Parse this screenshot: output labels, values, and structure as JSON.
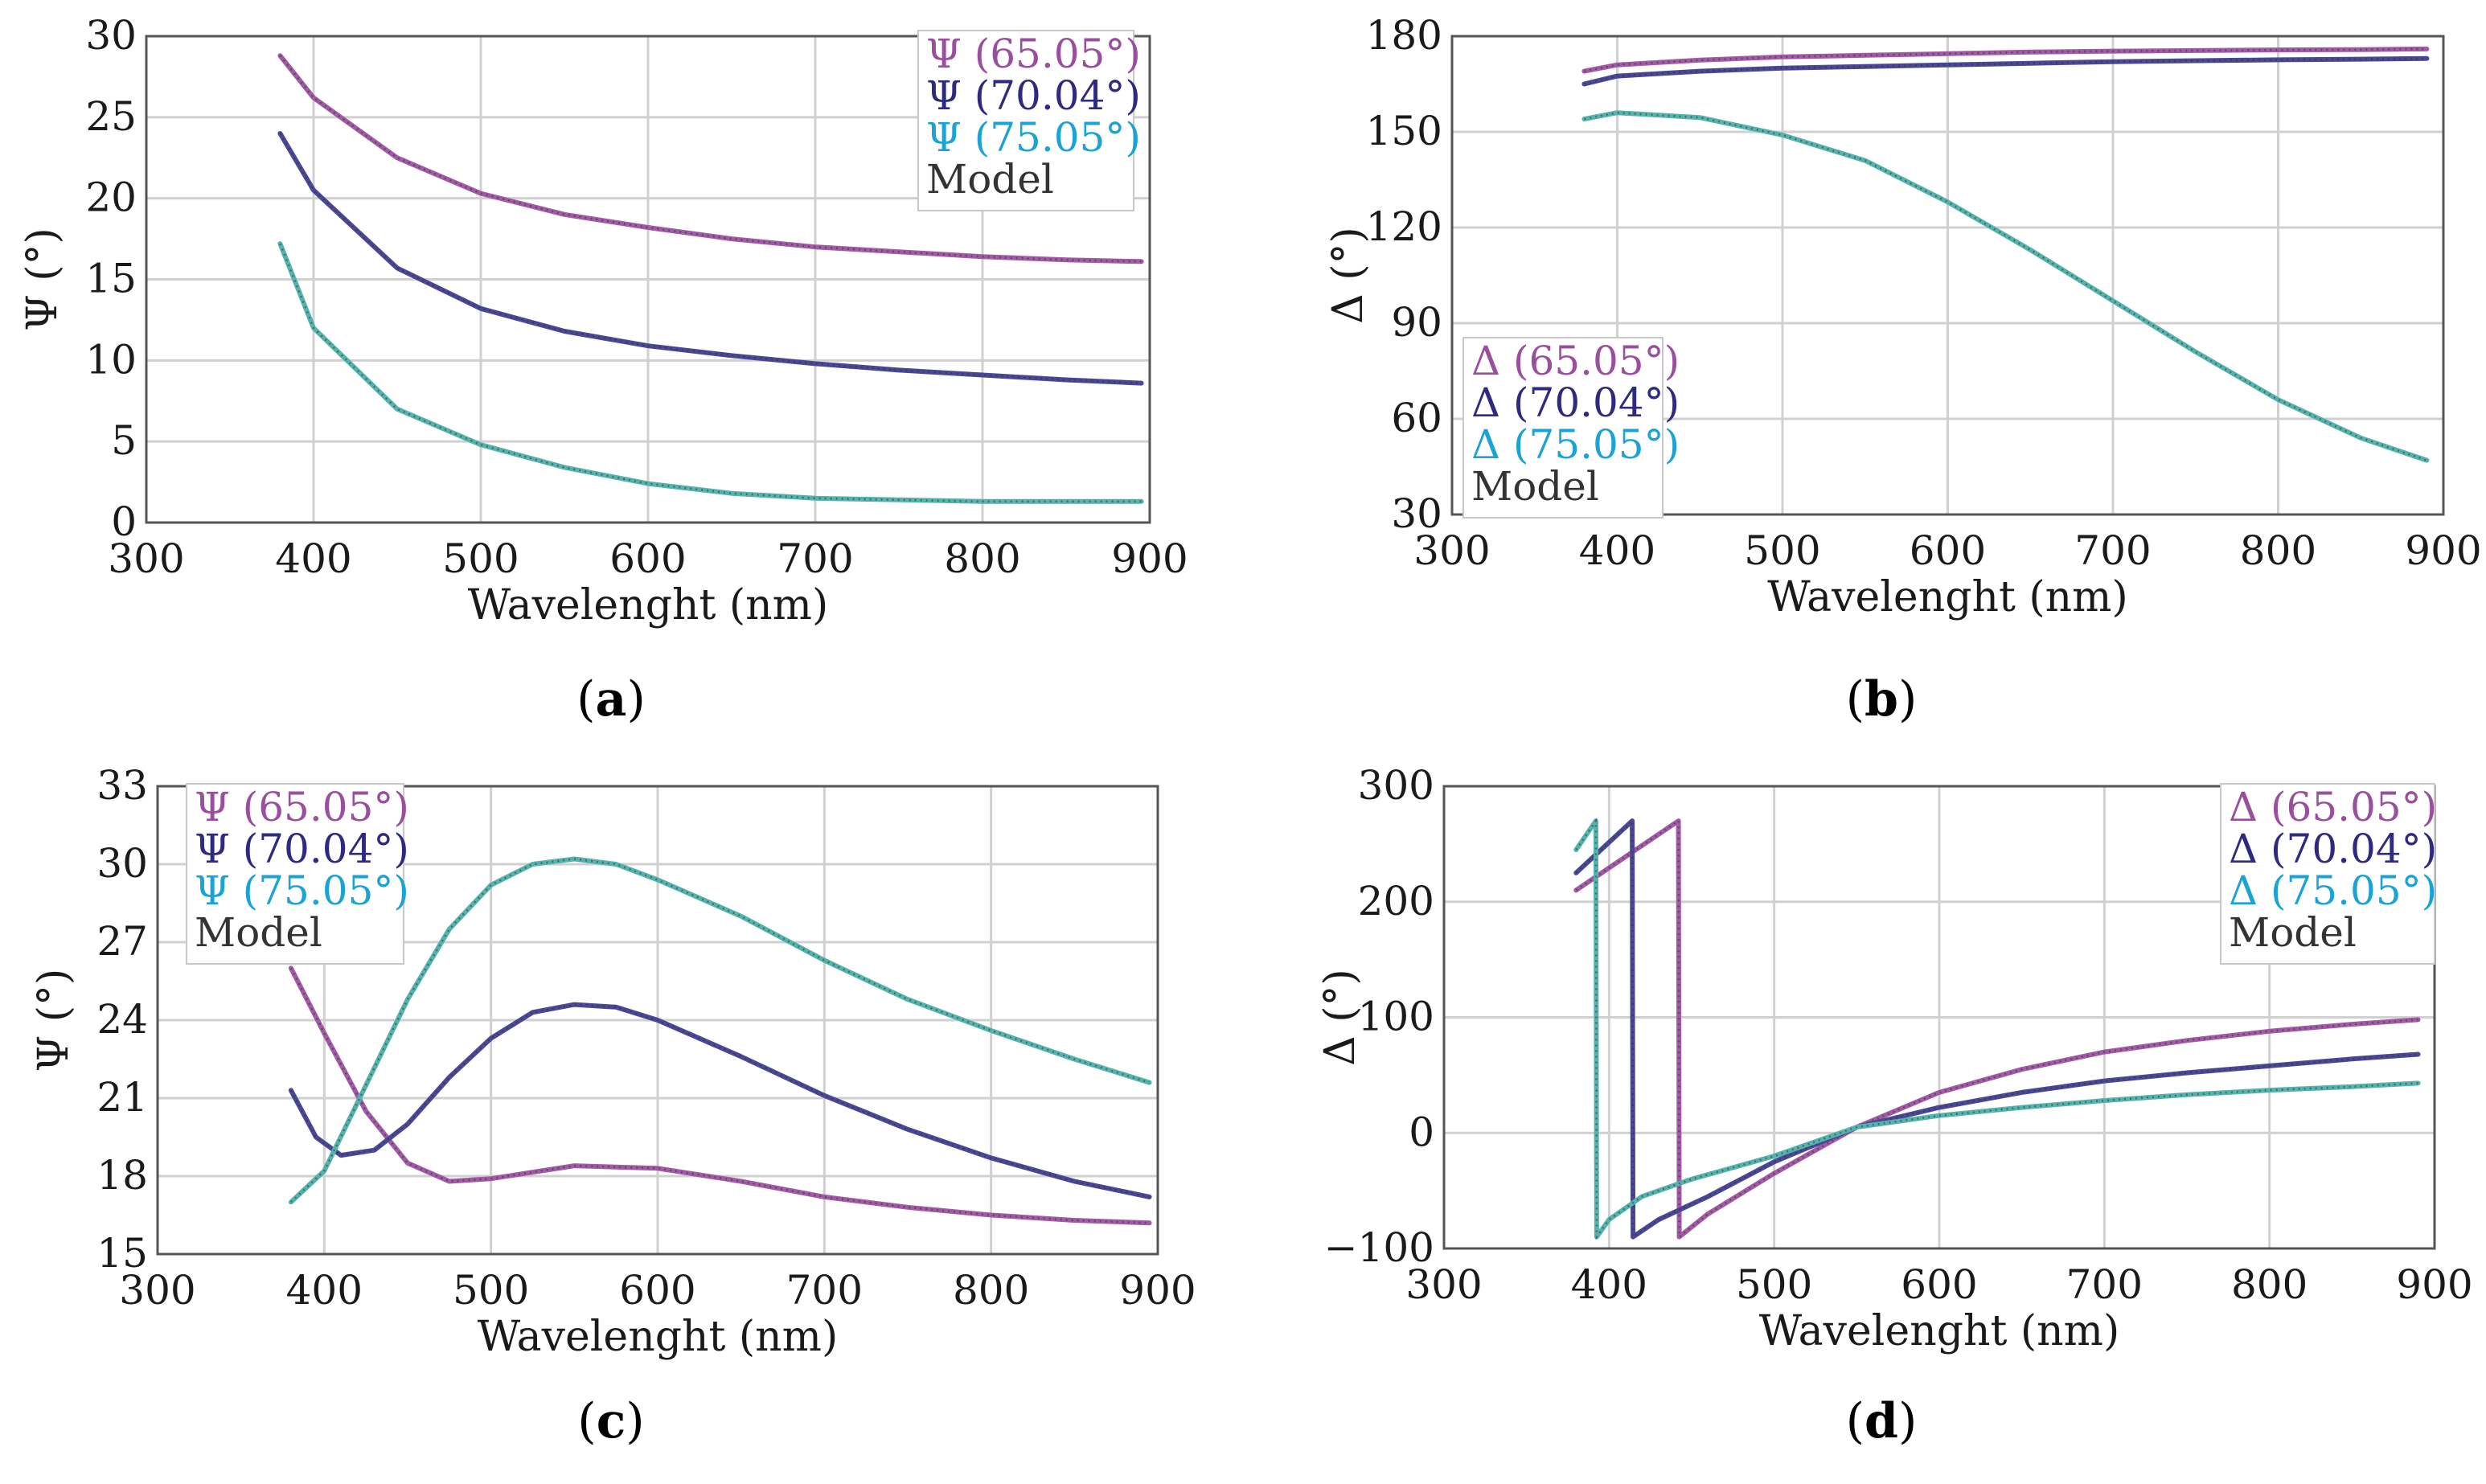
{
  "figure": {
    "colors": {
      "angle_65": "#9a4f9e",
      "angle_70": "#2e2a80",
      "angle_75": "#1aa3d4",
      "trace_65": "#a15aa6",
      "trace_70": "#4a4896",
      "trace_75": "#55b3ae",
      "model": "#333333",
      "grid": "#d0d0d0",
      "frame": "#555555"
    }
  },
  "chart_data": [
    {
      "id": "a",
      "type": "line",
      "panel_label": "a",
      "xlabel": "Wavelenght (nm)",
      "ylabel": "Ψ (°)",
      "xlim": [
        300,
        900
      ],
      "ylim": [
        0,
        30
      ],
      "xticks": [
        "300",
        "400",
        "500",
        "600",
        "700",
        "800",
        "900"
      ],
      "yticks": [
        "0",
        "5",
        "10",
        "15",
        "20",
        "25",
        "30"
      ],
      "legend_position": "top-right",
      "legend": [
        "Ψ (65.05°)",
        "Ψ (70.04°)",
        "Ψ (75.05°)",
        "Model"
      ],
      "series": [
        {
          "name": "Ψ (65.05°)",
          "color_key": "trace_65",
          "x": [
            380,
            400,
            450,
            500,
            550,
            600,
            650,
            700,
            750,
            800,
            850,
            895
          ],
          "y": [
            28.8,
            26.2,
            22.5,
            20.3,
            19.0,
            18.2,
            17.5,
            17.0,
            16.7,
            16.4,
            16.2,
            16.1
          ]
        },
        {
          "name": "Ψ (70.04°)",
          "color_key": "trace_70",
          "x": [
            380,
            400,
            450,
            500,
            550,
            600,
            650,
            700,
            750,
            800,
            850,
            895
          ],
          "y": [
            24.0,
            20.5,
            15.7,
            13.2,
            11.8,
            10.9,
            10.3,
            9.8,
            9.4,
            9.1,
            8.8,
            8.6
          ]
        },
        {
          "name": "Ψ (75.05°)",
          "color_key": "trace_75",
          "x": [
            380,
            400,
            450,
            500,
            550,
            600,
            650,
            700,
            750,
            800,
            850,
            895
          ],
          "y": [
            17.2,
            12.0,
            7.0,
            4.8,
            3.4,
            2.4,
            1.8,
            1.5,
            1.4,
            1.3,
            1.3,
            1.3
          ]
        }
      ]
    },
    {
      "id": "b",
      "type": "line",
      "panel_label": "b",
      "xlabel": "Wavelenght (nm)",
      "ylabel": "Δ (°)",
      "xlim": [
        300,
        900
      ],
      "ylim": [
        30,
        180
      ],
      "xticks": [
        "300",
        "400",
        "500",
        "600",
        "700",
        "800",
        "900"
      ],
      "yticks": [
        "30",
        "60",
        "90",
        "120",
        "150",
        "180"
      ],
      "legend_position": "bottom-left",
      "legend": [
        "Δ (65.05°)",
        "Δ (70.04°)",
        "Δ (75.05°)",
        "Model"
      ],
      "series": [
        {
          "name": "Δ (65.05°)",
          "color_key": "trace_65",
          "x": [
            380,
            400,
            450,
            500,
            550,
            600,
            650,
            700,
            750,
            800,
            850,
            890
          ],
          "y": [
            169,
            171,
            172.5,
            173.5,
            174,
            174.5,
            175,
            175.3,
            175.5,
            175.7,
            175.8,
            176
          ]
        },
        {
          "name": "Δ (70.04°)",
          "color_key": "trace_70",
          "x": [
            380,
            400,
            450,
            500,
            550,
            600,
            650,
            700,
            750,
            800,
            850,
            890
          ],
          "y": [
            165,
            167.5,
            169,
            170,
            170.5,
            171,
            171.5,
            172,
            172.3,
            172.6,
            172.8,
            173
          ]
        },
        {
          "name": "Δ (75.05°)",
          "color_key": "trace_75",
          "x": [
            380,
            400,
            450,
            500,
            550,
            600,
            650,
            700,
            750,
            800,
            850,
            890
          ],
          "y": [
            154,
            156,
            154.5,
            149,
            141,
            128,
            113,
            97,
            81,
            66,
            54,
            47
          ]
        }
      ]
    },
    {
      "id": "c",
      "type": "line",
      "panel_label": "c",
      "xlabel": "Wavelenght (nm)",
      "ylabel": "Ψ (°)",
      "xlim": [
        300,
        900
      ],
      "ylim": [
        15,
        33
      ],
      "xticks": [
        "300",
        "400",
        "500",
        "600",
        "700",
        "800",
        "900"
      ],
      "yticks": [
        "15",
        "18",
        "21",
        "24",
        "27",
        "30",
        "33"
      ],
      "legend_position": "top-left",
      "legend": [
        "Ψ (65.05°)",
        "Ψ (70.04°)",
        "Ψ (75.05°)",
        "Model"
      ],
      "series": [
        {
          "name": "Ψ (65.05°)",
          "color_key": "trace_65",
          "x": [
            380,
            400,
            425,
            450,
            475,
            500,
            550,
            600,
            650,
            700,
            750,
            800,
            850,
            895
          ],
          "y": [
            26,
            23.5,
            20.5,
            18.5,
            17.8,
            17.9,
            18.4,
            18.3,
            17.8,
            17.2,
            16.8,
            16.5,
            16.3,
            16.2
          ]
        },
        {
          "name": "Ψ (70.04°)",
          "color_key": "trace_70",
          "x": [
            380,
            395,
            410,
            430,
            450,
            475,
            500,
            525,
            550,
            575,
            600,
            650,
            700,
            750,
            800,
            850,
            895
          ],
          "y": [
            21.3,
            19.5,
            18.8,
            19.0,
            20.0,
            21.8,
            23.3,
            24.3,
            24.6,
            24.5,
            24.0,
            22.6,
            21.1,
            19.8,
            18.7,
            17.8,
            17.2
          ]
        },
        {
          "name": "Ψ (75.05°)",
          "color_key": "trace_75",
          "x": [
            380,
            400,
            425,
            450,
            475,
            500,
            525,
            550,
            575,
            600,
            650,
            700,
            750,
            800,
            850,
            895
          ],
          "y": [
            17.0,
            18.2,
            21.5,
            24.8,
            27.5,
            29.2,
            30.0,
            30.2,
            30.0,
            29.4,
            28.0,
            26.3,
            24.8,
            23.6,
            22.5,
            21.6
          ]
        }
      ]
    },
    {
      "id": "d",
      "type": "line",
      "panel_label": "d",
      "xlabel": "Wavelenght (nm)",
      "ylabel": "Δ (°)",
      "xlim": [
        300,
        900
      ],
      "ylim": [
        -100,
        300
      ],
      "xticks": [
        "300",
        "400",
        "500",
        "600",
        "700",
        "800",
        "900"
      ],
      "yticks": [
        "−100",
        "0",
        "100",
        "200",
        "300"
      ],
      "legend_position": "top-right",
      "legend": [
        "Δ (65.05°)",
        "Δ (70.04°)",
        "Δ (75.05°)",
        "Model"
      ],
      "series": [
        {
          "name": "Δ (65.05°)",
          "color_key": "trace_65",
          "x": [
            380,
            442,
            442.5,
            460,
            500,
            550,
            600,
            650,
            700,
            750,
            800,
            850,
            890
          ],
          "y": [
            210,
            270,
            -90,
            -70,
            -35,
            5,
            35,
            55,
            70,
            80,
            88,
            94,
            98
          ]
        },
        {
          "name": "Δ (70.04°)",
          "color_key": "trace_70",
          "x": [
            380,
            414,
            414.5,
            430,
            460,
            500,
            550,
            600,
            650,
            700,
            750,
            800,
            850,
            890
          ],
          "y": [
            225,
            270,
            -90,
            -75,
            -55,
            -25,
            5,
            22,
            35,
            45,
            52,
            58,
            64,
            68
          ]
        },
        {
          "name": "Δ (75.05°)",
          "color_key": "trace_75",
          "x": [
            380,
            392,
            392.5,
            400,
            420,
            450,
            500,
            550,
            600,
            650,
            700,
            750,
            800,
            850,
            890
          ],
          "y": [
            245,
            270,
            -90,
            -75,
            -55,
            -40,
            -20,
            5,
            15,
            22,
            28,
            33,
            37,
            40,
            43
          ]
        }
      ]
    }
  ]
}
